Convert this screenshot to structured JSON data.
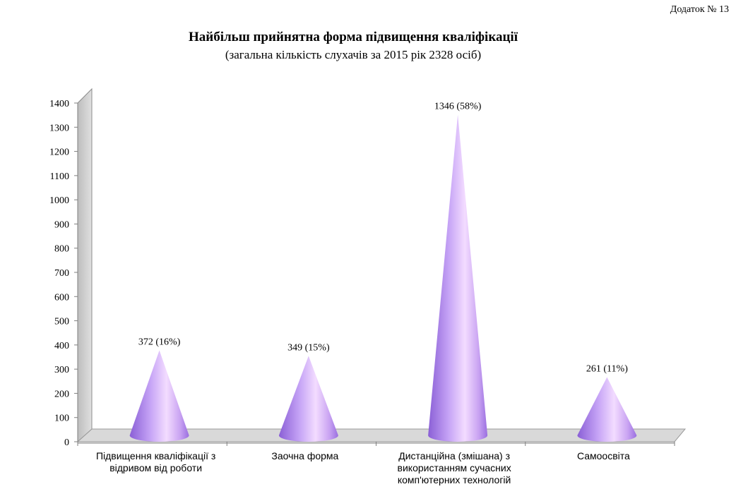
{
  "appendix": "Додаток № 13",
  "chart_data": {
    "type": "bar",
    "title": "Найбільш прийнятна форма підвищення кваліфікації",
    "subtitle": "(загальна кількість слухачів за 2015 рік 2328 осіб)",
    "categories": [
      "Підвищення кваліфікації з відривом від роботи",
      "Заочна форма",
      "Дистанційна (змішана) з використанням сучасних комп'ютерних технологій",
      "Самоосвіта"
    ],
    "values": [
      372,
      349,
      1346,
      261
    ],
    "data_labels": [
      "372 (16%)",
      "349 (15%)",
      "1346 (58%)",
      "261 (11%)"
    ],
    "ylim": [
      0,
      1400
    ],
    "yticks": [
      "0",
      "100",
      "200",
      "300",
      "400",
      "500",
      "600",
      "700",
      "800",
      "900",
      "1000",
      "1100",
      "1200",
      "1300",
      "1400"
    ],
    "shape": "cone",
    "colors": {
      "cone": "#b58cf0",
      "cone_light": "#f2d8ff",
      "floor": "#d9d9d9",
      "wall": "#d9d9d9"
    }
  }
}
